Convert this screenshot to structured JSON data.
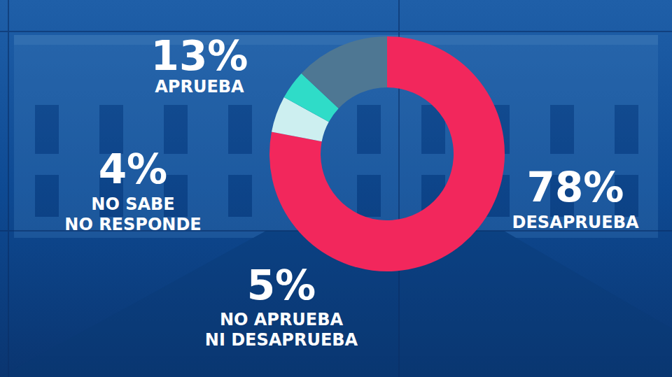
{
  "chart_data": {
    "type": "donut",
    "categories": [
      "DESAPRUEBA",
      "NO APRUEBA NI DESAPRUEBA",
      "NO SABE NO RESPONDE",
      "APRUEBA"
    ],
    "values": [
      78,
      5,
      4,
      13
    ],
    "value_labels": [
      "78%",
      "5%",
      "4%",
      "13%"
    ],
    "colors": [
      "#f2275c",
      "#cdeff0",
      "#2fdcc8",
      "#4e7793"
    ],
    "data_labels": true
  }
}
